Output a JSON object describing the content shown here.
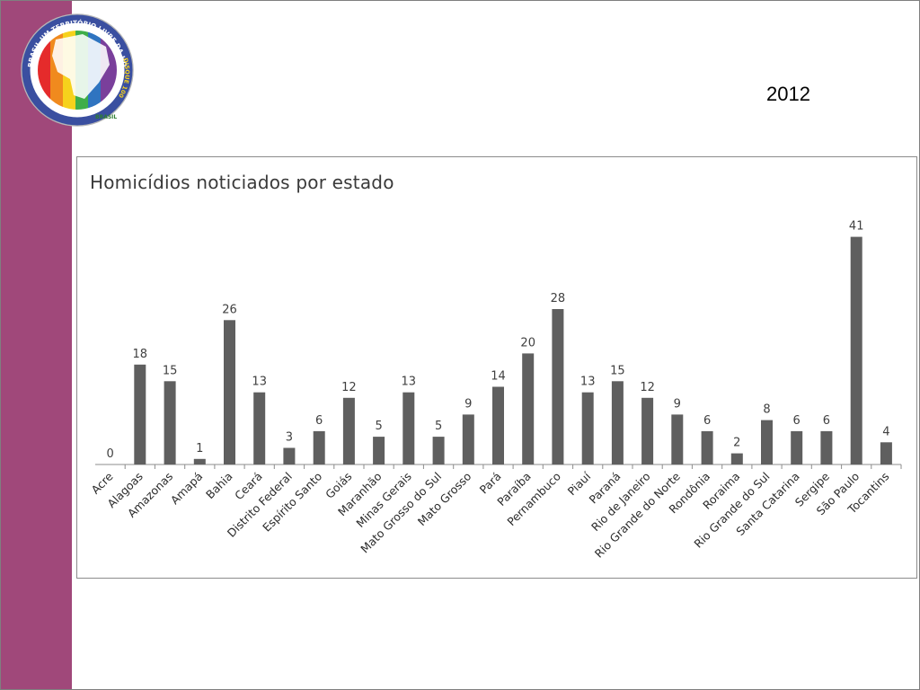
{
  "slide": {
    "year": "2012",
    "band_color": "#a0487a"
  },
  "logo": {
    "ring_text_top": "FAÇA DO BRASIL UM TERRITÓRIO LIVRE DA HOMOFOBIA",
    "ring_text_side": "DISQUE 100",
    "footer_text": "BRASIL",
    "icon": "rainbow-brazil-map-logo"
  },
  "chart_data": {
    "type": "bar",
    "title": "Homicídios noticiados por estado",
    "xlabel": "",
    "ylabel": "",
    "ylim": [
      0,
      45
    ],
    "grid": false,
    "legend": "none",
    "bar_color": "#5f5f5f",
    "categories": [
      "Acre",
      "Alagoas",
      "Amazonas",
      "Amapá",
      "Bahia",
      "Ceará",
      "Distrito Federal",
      "Espírito Santo",
      "Goiás",
      "Maranhão",
      "Minas Gerais",
      "Mato Grosso do Sul",
      "Mato Grosso",
      "Pará",
      "Paraíba",
      "Pernambuco",
      "Piauí",
      "Paraná",
      "Rio de Janeiro",
      "Rio Grande do Norte",
      "Rondônia",
      "Roraima",
      "Rio Grande do Sul",
      "Santa Catarina",
      "Sergipe",
      "São Paulo",
      "Tocantins"
    ],
    "values": [
      0,
      18,
      15,
      1,
      26,
      13,
      3,
      6,
      12,
      5,
      13,
      5,
      9,
      14,
      20,
      28,
      13,
      15,
      12,
      9,
      6,
      2,
      8,
      6,
      6,
      41,
      4
    ]
  }
}
